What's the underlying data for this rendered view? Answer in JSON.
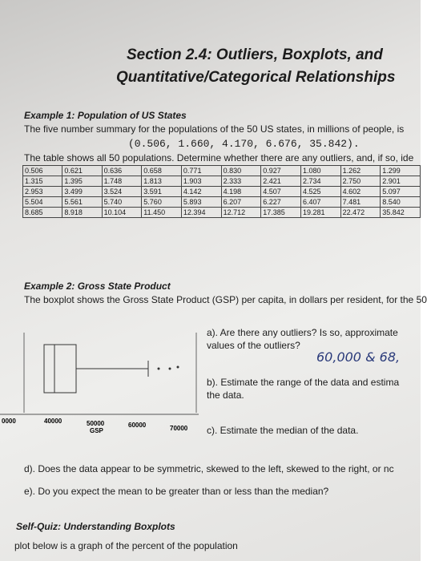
{
  "header": {
    "title_line1": "Section 2.4: Outliers, Boxplots, and",
    "title_line2": "Quantitative/Categorical Relationships"
  },
  "example1": {
    "heading": "Example 1: Population of US States",
    "text": "The five number summary for the populations of the 50 US states, in millions of people, is",
    "summary": "(0.506, 1.660, 4.170, 6.676, 35.842).",
    "table_intro": "The table shows all 50 populations. Determine whether there are any outliers, and, if so, ide",
    "table": {
      "rows": [
        [
          "0.506",
          "0.621",
          "0.636",
          "0.658",
          "0.771",
          "0.830",
          "0.927",
          "1.080",
          "1.262",
          "1.299"
        ],
        [
          "1.315",
          "1.395",
          "1.748",
          "1.813",
          "1.903",
          "2.333",
          "2.421",
          "2.734",
          "2.750",
          "2.901"
        ],
        [
          "2.953",
          "3.499",
          "3.524",
          "3.591",
          "4.142",
          "4.198",
          "4.507",
          "4.525",
          "4.602",
          "5.097"
        ],
        [
          "5.504",
          "5.561",
          "5.740",
          "5.760",
          "5.893",
          "6.207",
          "6.227",
          "6.407",
          "7.481",
          "8.540"
        ],
        [
          "8.685",
          "8.918",
          "10.104",
          "11.450",
          "12.394",
          "12.712",
          "17.385",
          "19.281",
          "22.472",
          "35.842"
        ]
      ]
    }
  },
  "example2": {
    "heading": "Example 2: Gross State Product",
    "text": "The boxplot shows the Gross State Product (GSP) per capita, in dollars per resident, for the 50",
    "axis_labels": [
      "0000",
      "40000",
      "50000",
      "60000",
      "70000"
    ],
    "axis_title": "GSP",
    "questions": [
      {
        "line1": "a). Are there any outliers? Is so, approximate",
        "line2": "values of the outliers?"
      },
      {
        "line1": "b). Estimate the range of the data and estima",
        "line2": "the data."
      },
      {
        "line1": "c). Estimate the median of the data."
      },
      {
        "line1": "d). Does the data appear to be symmetric, skewed to the left, skewed to the right, or nc"
      },
      {
        "line1": "e). Do you expect the mean to be greater than or less than the median?"
      }
    ],
    "handwritten": "60,000 & 68,"
  },
  "self_quiz": {
    "heading": "Self-Quiz: Understanding Boxplots",
    "text": "plot below is a graph of the percent of the population"
  }
}
